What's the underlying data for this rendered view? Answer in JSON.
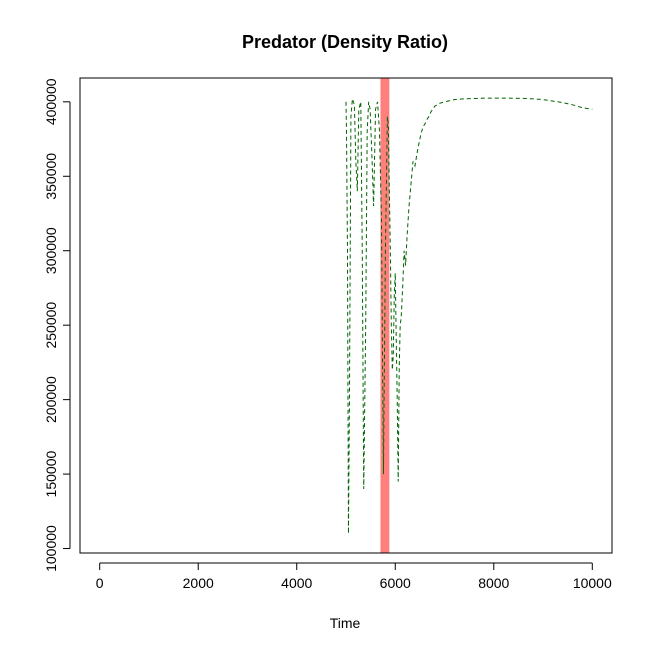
{
  "chart_data": {
    "type": "line",
    "title": "Predator (Density Ratio)",
    "xlabel": "Time",
    "ylabel": "",
    "xlim": [
      -400,
      10400
    ],
    "ylim": [
      97000,
      416000
    ],
    "xticks": [
      0,
      2000,
      4000,
      6000,
      8000,
      10000
    ],
    "yticks": [
      100000,
      150000,
      200000,
      250000,
      300000,
      350000,
      400000
    ],
    "xtick_labels": [
      "0",
      "2000",
      "4000",
      "6000",
      "8000",
      "10000"
    ],
    "ytick_labels": [
      "100000",
      "150000",
      "200000",
      "250000",
      "300000",
      "350000",
      "400000"
    ],
    "grid": false,
    "highlight_band": {
      "x_start": 5700,
      "x_end": 5880,
      "color": "#ff7f7f"
    },
    "series": [
      {
        "line_color": "#006400",
        "line_style": "dashed",
        "x": [
          5000,
          5010,
          5030,
          5050,
          5070,
          5100,
          5130,
          5170,
          5200,
          5230,
          5260,
          5300,
          5330,
          5360,
          5400,
          5430,
          5460,
          5490,
          5530,
          5560,
          5600,
          5640,
          5680,
          5720,
          5760,
          5800,
          5840,
          5860,
          5880,
          5900,
          5920,
          5940,
          5960,
          5980,
          6000,
          6020,
          6040,
          6060,
          6080,
          6100,
          6120,
          6150,
          6180,
          6210,
          6240,
          6280,
          6320,
          6360,
          6400,
          6440,
          6480,
          6520,
          6560,
          6600,
          6640,
          6680,
          6720,
          6760,
          6800,
          6900,
          7000,
          7200,
          7400,
          7600,
          7800,
          8000,
          8200,
          8400,
          8600,
          8800,
          9000,
          9200,
          9400,
          9600,
          9800,
          10000
        ],
        "y": [
          400000,
          380000,
          300000,
          110000,
          200000,
          390000,
          402000,
          398000,
          360000,
          340000,
          395000,
          400000,
          300000,
          140000,
          250000,
          380000,
          400000,
          395000,
          360000,
          330000,
          395000,
          400000,
          380000,
          320000,
          150000,
          300000,
          390000,
          385000,
          340000,
          300000,
          250000,
          220000,
          230000,
          270000,
          285000,
          240000,
          200000,
          145000,
          220000,
          250000,
          255000,
          275000,
          300000,
          290000,
          310000,
          330000,
          345000,
          360000,
          357000,
          365000,
          372000,
          378000,
          383000,
          385000,
          388000,
          390000,
          393000,
          395000,
          397000,
          399000,
          400000,
          401500,
          402000,
          402200,
          402500,
          402500,
          402500,
          402400,
          402300,
          402000,
          401500,
          400500,
          399500,
          398000,
          396000,
          395000
        ]
      }
    ]
  }
}
